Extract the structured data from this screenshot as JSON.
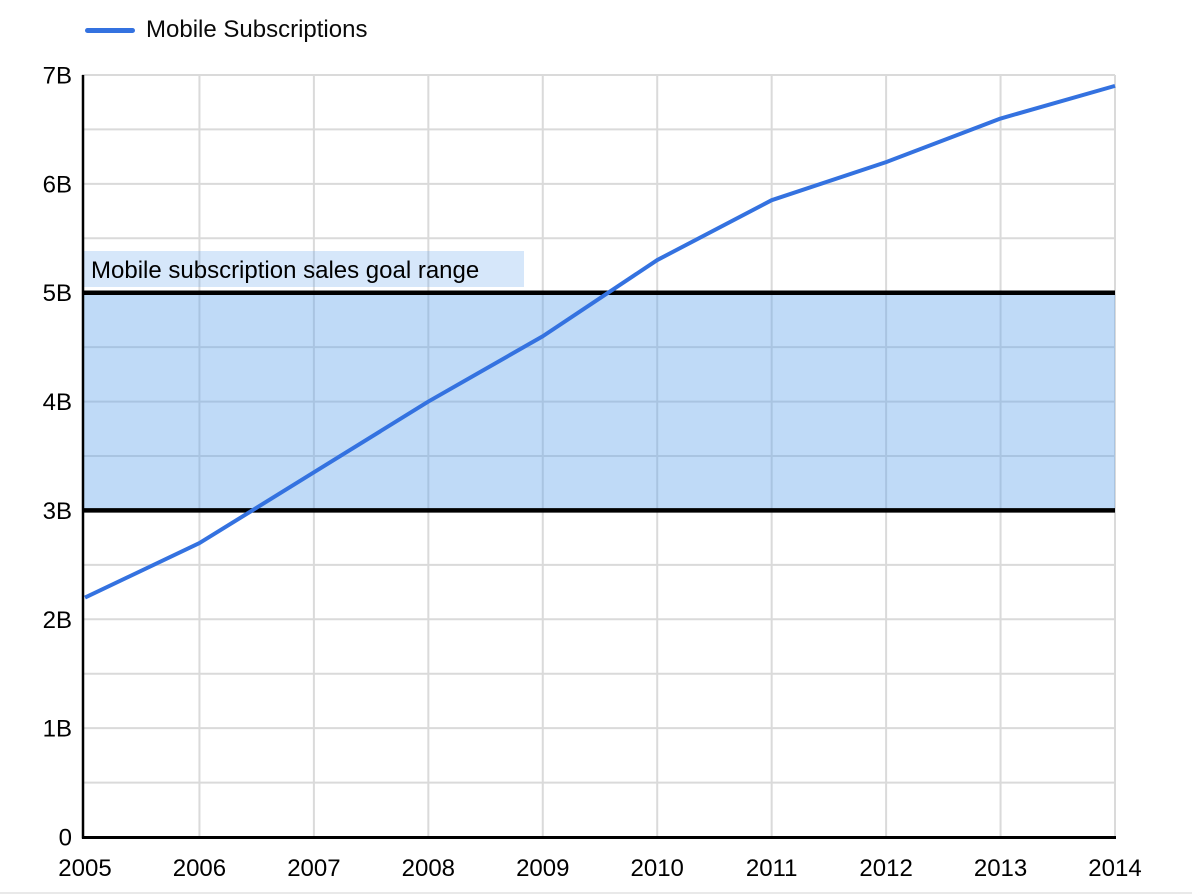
{
  "legend": {
    "label": "Mobile Subscriptions"
  },
  "colors": {
    "line": "#3472e0",
    "grid": "#dadada",
    "axis": "#000000",
    "band_fill": "rgba(102,168,236,0.42)",
    "annotation_bg": "rgba(102,168,236,0.27)",
    "text": "#000000"
  },
  "chart_data": {
    "type": "line",
    "title": "",
    "xlabel": "",
    "ylabel": "",
    "x": [
      2005,
      2006,
      2007,
      2008,
      2009,
      2010,
      2011,
      2012,
      2013,
      2014
    ],
    "series": [
      {
        "name": "Mobile Subscriptions",
        "values": [
          2.2,
          2.7,
          3.35,
          4.0,
          4.6,
          5.3,
          5.85,
          6.2,
          6.6,
          6.9
        ]
      }
    ],
    "ylim": [
      0,
      7
    ],
    "y_tick_labels": [
      "0",
      "1B",
      "2B",
      "3B",
      "4B",
      "5B",
      "6B",
      "7B"
    ],
    "y_minor_step": 0.5,
    "grid": true,
    "legend_position": "top-left",
    "band": {
      "from": 3,
      "to": 5,
      "label": "Mobile subscription sales goal range"
    }
  }
}
